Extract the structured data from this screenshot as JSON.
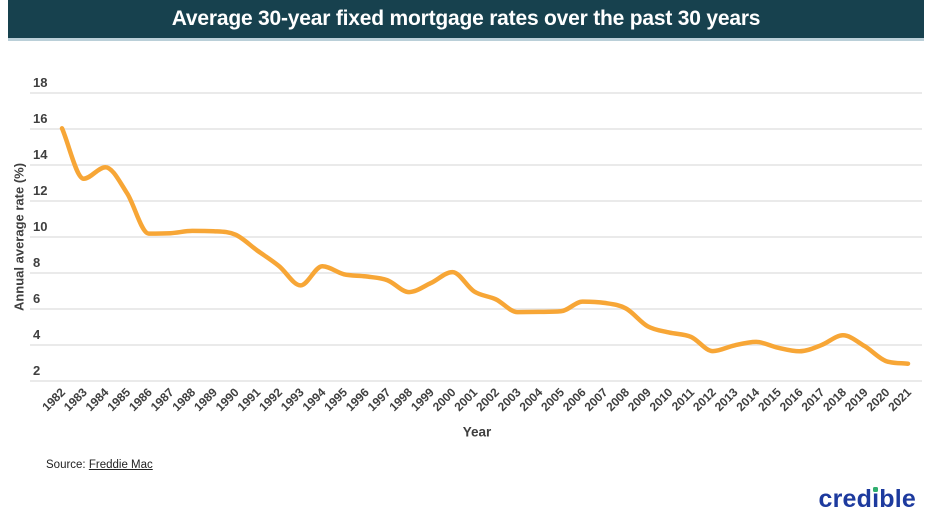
{
  "title": "Average 30-year fixed mortgage rates over the past 30 years",
  "chart_data": {
    "type": "line",
    "title": "Average 30-year fixed mortgage rates over the past 30 years",
    "categories": [
      1982,
      1983,
      1984,
      1985,
      1986,
      1987,
      1988,
      1989,
      1990,
      1991,
      1992,
      1993,
      1994,
      1995,
      1996,
      1997,
      1998,
      1999,
      2000,
      2001,
      2002,
      2003,
      2004,
      2005,
      2006,
      2007,
      2008,
      2009,
      2010,
      2011,
      2012,
      2013,
      2014,
      2015,
      2016,
      2017,
      2018,
      2019,
      2020,
      2021
    ],
    "series": [
      {
        "name": "Average 30-year fixed mortgage rate",
        "values": [
          16.04,
          13.24,
          13.88,
          12.43,
          10.19,
          10.21,
          10.34,
          10.32,
          10.13,
          9.25,
          8.39,
          7.31,
          8.38,
          7.93,
          7.81,
          7.6,
          6.94,
          7.44,
          8.05,
          6.97,
          6.54,
          5.83,
          5.84,
          5.87,
          6.41,
          6.34,
          6.03,
          5.04,
          4.69,
          4.45,
          3.66,
          3.98,
          4.17,
          3.85,
          3.65,
          3.99,
          4.54,
          3.94,
          3.1,
          2.96
        ]
      }
    ],
    "xlabel": "Year",
    "ylabel": "Annual average rate (%)",
    "ylim": [
      2,
      18
    ],
    "yticks": [
      2,
      4,
      6,
      8,
      10,
      12,
      14,
      16,
      18
    ],
    "grid": true,
    "legend": false,
    "line_color": "#F7A636"
  },
  "source": {
    "label": "Source:",
    "link": "Freddie Mac"
  },
  "logo": {
    "part1": "cred",
    "part2": "ı",
    "part3": "ble"
  },
  "colors": {
    "banner-bg": "#17414E",
    "banner-border": "#BACFD8",
    "banner-text": "#FFFFFF",
    "line": "#F7A636",
    "grid": "#E3E3E3",
    "tick-text": "#3F3F3F",
    "logo-navy": "#1D3A9E",
    "logo-green": "#2FAE6E",
    "source-text": "#222222"
  }
}
